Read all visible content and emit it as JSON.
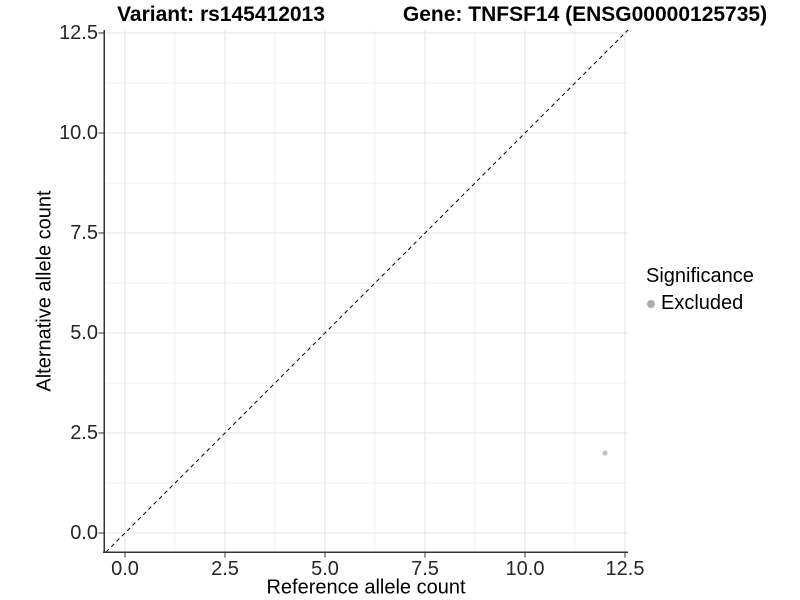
{
  "chart_data": {
    "type": "scatter",
    "titles": {
      "left": "Variant: rs145412013",
      "right": "Gene: TNFSF14 (ENSG00000125735)"
    },
    "xlabel": "Reference allele count",
    "ylabel": "Alternative allele count",
    "xlim": [
      -0.525,
      12.575
    ],
    "ylim": [
      -0.475,
      12.575
    ],
    "xticks": {
      "values": [
        0,
        2.5,
        5,
        7.5,
        10,
        12.5
      ],
      "labels": [
        "0.0",
        "2.5",
        "5.0",
        "7.5",
        "10.0",
        "12.5"
      ]
    },
    "yticks": {
      "values": [
        0,
        2.5,
        5,
        7.5,
        10,
        12.5
      ],
      "labels": [
        "0.0",
        "2.5",
        "5.0",
        "7.5",
        "10.0",
        "12.5"
      ]
    },
    "xticks_minor": [
      1.25,
      3.75,
      6.25,
      8.75,
      11.25
    ],
    "yticks_minor": [
      1.25,
      3.75,
      6.25,
      8.75,
      11.25
    ],
    "grid": "on",
    "legend_position": "right",
    "reference_line": {
      "kind": "identity y=x",
      "from": [
        -0.475,
        -0.475
      ],
      "to": [
        12.575,
        12.575
      ],
      "style": "dashed",
      "color": "#000000"
    },
    "series": [
      {
        "name": "Excluded",
        "color": "#bfbfbf",
        "points": [
          {
            "x": 12,
            "y": 2
          }
        ]
      }
    ],
    "legend": {
      "title": "Significance",
      "entries": [
        {
          "label": "Excluded",
          "color": "#adadad"
        }
      ]
    },
    "colors": {
      "axis": "#333333",
      "tick_label": "#262626",
      "grid_major": "#e3e3e3",
      "grid_minor": "#f0f0f0"
    }
  }
}
